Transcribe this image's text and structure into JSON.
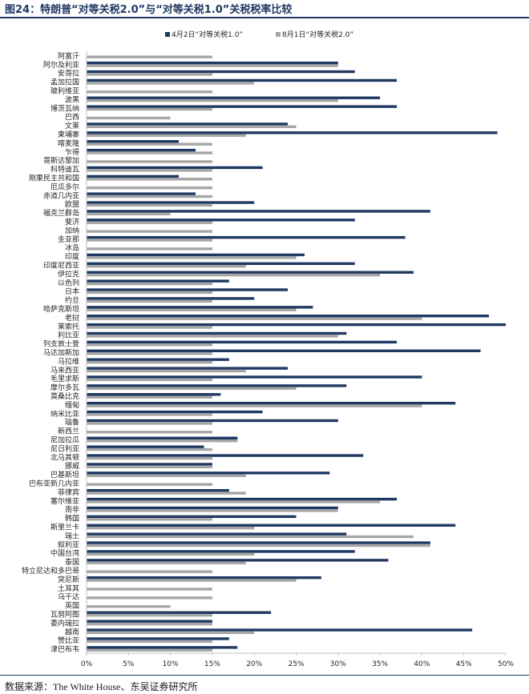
{
  "figure": {
    "title": "图24：特朗普“对等关税2.0”与“对等关税1.0”关税税率比较",
    "source_label": "数据来源：",
    "source_text": "The White House、东吴证券研究所"
  },
  "colors": {
    "series_v1": "#1f3864",
    "series_v2": "#a6a6a6",
    "axis": "#bfbfbf"
  },
  "chart_data": {
    "type": "bar",
    "orientation": "horizontal",
    "title": "",
    "xlabel": "",
    "ylabel": "",
    "xlim": [
      0,
      0.5
    ],
    "x_ticks": [
      "0%",
      "5%",
      "10%",
      "15%",
      "20%",
      "25%",
      "30%",
      "35%",
      "40%",
      "45%",
      "50%"
    ],
    "legend_position": "top",
    "categories": [
      "阿富汗",
      "阿尔及利亚",
      "安哥拉",
      "孟加拉国",
      "玻利维亚",
      "波黑",
      "博茨瓦纳",
      "巴西",
      "文莱",
      "柬埔寨",
      "喀麦隆",
      "乍得",
      "哥斯达黎加",
      "科特迪瓦",
      "刚果民主共和国",
      "厄瓜多尔",
      "赤道几内亚",
      "欧盟",
      "福克兰群岛",
      "斐济",
      "加纳",
      "圭亚那",
      "冰岛",
      "印度",
      "印度尼西亚",
      "伊拉克",
      "以色列",
      "日本",
      "约旦",
      "哈萨克斯坦",
      "老挝",
      "莱索托",
      "利比亚",
      "列支敦士登",
      "马达加斯加",
      "马拉维",
      "马来西亚",
      "毛里求斯",
      "摩尔多瓦",
      "莫桑比克",
      "缅甸",
      "纳米比亚",
      "瑙鲁",
      "新西兰",
      "尼加拉瓜",
      "尼日利亚",
      "北马其顿",
      "挪威",
      "巴基斯坦",
      "巴布亚新几内亚",
      "菲律宾",
      "塞尔维亚",
      "南非",
      "韩国",
      "斯里兰卡",
      "瑞士",
      "叙利亚",
      "中国台湾",
      "泰国",
      "特立尼达和多巴哥",
      "突尼斯",
      "土耳其",
      "乌干达",
      "英国",
      "瓦努阿图",
      "委内瑞拉",
      "越南",
      "赞比亚",
      "津巴布韦"
    ],
    "series": [
      {
        "name": "4月2日“对等关税1.0”",
        "values": [
          null,
          0.3,
          0.32,
          0.37,
          null,
          0.35,
          0.37,
          null,
          0.24,
          0.49,
          0.11,
          0.13,
          null,
          0.21,
          0.11,
          null,
          0.13,
          0.2,
          0.41,
          0.32,
          null,
          0.38,
          null,
          0.26,
          0.32,
          0.39,
          0.17,
          0.24,
          0.2,
          0.27,
          0.48,
          0.5,
          0.31,
          0.37,
          0.47,
          0.17,
          0.24,
          0.4,
          0.31,
          0.16,
          0.44,
          0.21,
          0.3,
          null,
          0.18,
          0.14,
          0.33,
          0.15,
          0.29,
          null,
          0.17,
          0.37,
          0.3,
          0.25,
          0.44,
          0.31,
          0.41,
          0.32,
          0.36,
          null,
          0.28,
          null,
          null,
          null,
          0.22,
          0.15,
          0.46,
          0.17,
          0.18
        ]
      },
      {
        "name": "8月1日“对等关税2.0”",
        "values": [
          0.15,
          0.3,
          0.15,
          0.2,
          0.15,
          0.3,
          0.15,
          0.1,
          0.25,
          0.19,
          0.15,
          0.15,
          0.15,
          0.15,
          0.15,
          0.15,
          0.15,
          0.15,
          0.1,
          0.15,
          0.15,
          0.15,
          0.15,
          0.25,
          0.19,
          0.35,
          0.15,
          0.15,
          0.15,
          0.25,
          0.4,
          0.15,
          0.3,
          0.15,
          0.15,
          0.15,
          0.19,
          0.15,
          0.25,
          0.15,
          0.4,
          0.15,
          0.15,
          0.15,
          0.18,
          0.15,
          0.15,
          0.15,
          0.19,
          0.15,
          0.19,
          0.35,
          0.3,
          0.15,
          0.2,
          0.39,
          0.41,
          0.2,
          0.19,
          0.15,
          0.25,
          0.15,
          0.15,
          0.1,
          0.15,
          0.15,
          0.2,
          0.15,
          0.15
        ]
      }
    ]
  }
}
